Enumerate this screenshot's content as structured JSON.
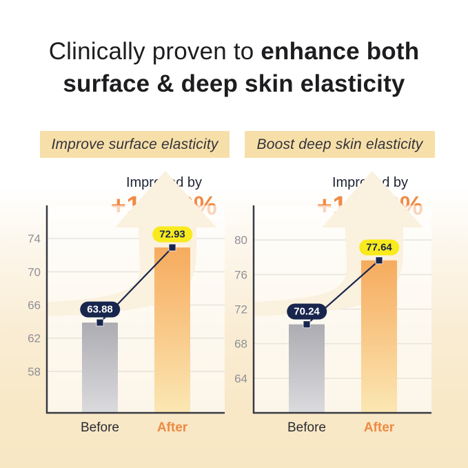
{
  "title": {
    "line1_regular": "Clinically proven to ",
    "line1_bold": "enhance both",
    "line2_bold": "surface & deep skin elasticity"
  },
  "chart_data": [
    {
      "type": "bar",
      "badge_label": "Improve surface elasticity",
      "improved_label": "Improved by",
      "improved_value": "+14.16%",
      "categories": [
        "Before",
        "After"
      ],
      "values": [
        63.88,
        72.93
      ],
      "value_labels": [
        "63.88",
        "72.93"
      ],
      "yticks": [
        58,
        62,
        66,
        70,
        74
      ],
      "ylim": [
        53,
        78
      ],
      "grid": true,
      "legend": "none",
      "bar_styles": [
        "gray-gradient",
        "orange-gradient"
      ]
    },
    {
      "type": "bar",
      "badge_label": "Boost deep skin elasticity",
      "improved_label": "Improved by",
      "improved_value": "+10.53%",
      "categories": [
        "Before",
        "After"
      ],
      "values": [
        70.24,
        77.64
      ],
      "value_labels": [
        "70.24",
        "77.64"
      ],
      "yticks": [
        64,
        68,
        72,
        76,
        80
      ],
      "ylim": [
        60,
        84
      ],
      "grid": true,
      "legend": "none",
      "bar_styles": [
        "gray-gradient",
        "orange-gradient"
      ]
    }
  ],
  "colors": {
    "accent_orange": "#f08b45",
    "navy": "#18264e",
    "yellow_pill": "#f8ea1c",
    "badge_bg": "#f7dfa9",
    "page_bottom_cream": "#f8e7c3",
    "arrow_cream": "#faf1de",
    "gray_bar_top": "#acacb2",
    "gray_bar_bottom": "#dbdbde",
    "orange_bar_top": "#f6ab5e",
    "orange_bar_bottom": "#fbe7b3",
    "axis": "#383943",
    "tick_label": "#8f8f96",
    "gridline": "#e6e3dc"
  }
}
